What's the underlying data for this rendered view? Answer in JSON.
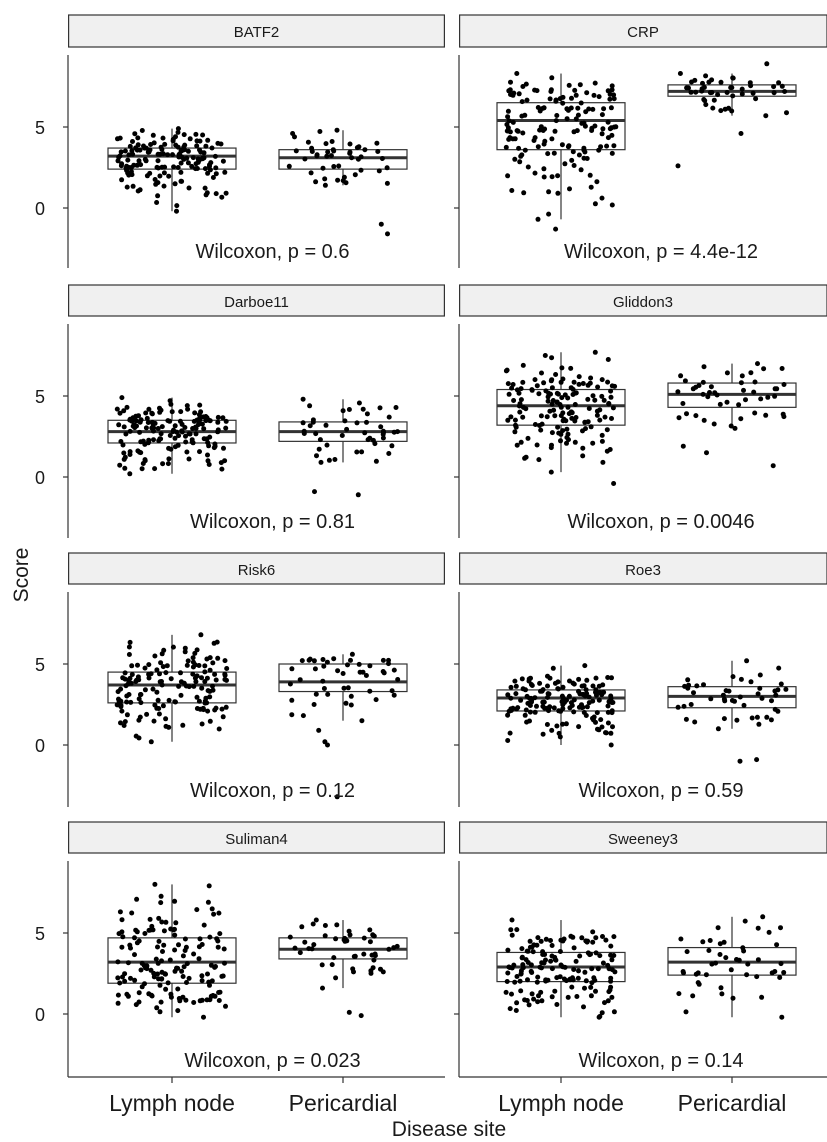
{
  "chart_data": {
    "type": "boxplot",
    "xlabel": "Disease site",
    "ylabel": "Score",
    "categories": [
      "Lymph node",
      "Pericardial"
    ],
    "yticks": [
      0,
      5
    ],
    "ylim": [
      -3.8,
      9.8
    ],
    "panels": [
      {
        "title": "BATF2",
        "annotation": "Wilcoxon, p = 0.6",
        "groups": [
          {
            "name": "Lymph node",
            "n": 150,
            "q1": 2.4,
            "median": 3.2,
            "q3": 3.7,
            "whisker_low": -0.2,
            "whisker_high": 4.9,
            "outliers": []
          },
          {
            "name": "Pericardial",
            "n": 45,
            "q1": 2.4,
            "median": 3.1,
            "q3": 3.6,
            "whisker_low": 1.4,
            "whisker_high": 4.8,
            "outliers": [
              -1.0,
              -1.6
            ]
          }
        ]
      },
      {
        "title": "CRP",
        "annotation": "Wilcoxon, p = 4.4e-12",
        "groups": [
          {
            "name": "Lymph node",
            "n": 150,
            "q1": 3.6,
            "median": 5.4,
            "q3": 6.5,
            "whisker_low": -0.7,
            "whisker_high": 8.3,
            "outliers": [
              -1.3
            ]
          },
          {
            "name": "Pericardial",
            "n": 45,
            "q1": 6.9,
            "median": 7.2,
            "q3": 7.6,
            "whisker_low": 5.7,
            "whisker_high": 8.3,
            "outliers": [
              2.6,
              4.6,
              8.9
            ]
          }
        ]
      },
      {
        "title": "Darboe11",
        "annotation": "Wilcoxon, p = 0.81",
        "groups": [
          {
            "name": "Lymph node",
            "n": 150,
            "q1": 2.1,
            "median": 2.8,
            "q3": 3.5,
            "whisker_low": 0.2,
            "whisker_high": 4.9,
            "outliers": []
          },
          {
            "name": "Pericardial",
            "n": 45,
            "q1": 2.2,
            "median": 2.8,
            "q3": 3.4,
            "whisker_low": 0.9,
            "whisker_high": 4.8,
            "outliers": [
              -0.9,
              -1.1
            ]
          }
        ]
      },
      {
        "title": "Gliddon3",
        "annotation": "Wilcoxon, p = 0.0046",
        "groups": [
          {
            "name": "Lymph node",
            "n": 150,
            "q1": 3.2,
            "median": 4.4,
            "q3": 5.4,
            "whisker_low": 0.3,
            "whisker_high": 7.7,
            "outliers": [
              -0.4
            ]
          },
          {
            "name": "Pericardial",
            "n": 45,
            "q1": 4.3,
            "median": 5.1,
            "q3": 5.8,
            "whisker_low": 3.0,
            "whisker_high": 7.0,
            "outliers": [
              0.7,
              1.5,
              1.9
            ]
          }
        ]
      },
      {
        "title": "Risk6",
        "annotation": "Wilcoxon, p = 0.12",
        "groups": [
          {
            "name": "Lymph node",
            "n": 150,
            "q1": 2.6,
            "median": 3.7,
            "q3": 4.5,
            "whisker_low": 0.2,
            "whisker_high": 6.8,
            "outliers": []
          },
          {
            "name": "Pericardial",
            "n": 45,
            "q1": 3.3,
            "median": 3.9,
            "q3": 5.0,
            "whisker_low": 1.5,
            "whisker_high": 5.6,
            "outliers": [
              0.0,
              0.2,
              0.9,
              -3.2
            ]
          }
        ]
      },
      {
        "title": "Roe3",
        "annotation": "Wilcoxon, p = 0.59",
        "groups": [
          {
            "name": "Lymph node",
            "n": 150,
            "q1": 2.1,
            "median": 2.9,
            "q3": 3.4,
            "whisker_low": 0.0,
            "whisker_high": 4.9,
            "outliers": []
          },
          {
            "name": "Pericardial",
            "n": 45,
            "q1": 2.3,
            "median": 3.0,
            "q3": 3.6,
            "whisker_low": 1.0,
            "whisker_high": 5.2,
            "outliers": [
              -0.9,
              -1.0
            ]
          }
        ]
      },
      {
        "title": "Suliman4",
        "annotation": "Wilcoxon, p = 0.023",
        "groups": [
          {
            "name": "Lymph node",
            "n": 150,
            "q1": 1.9,
            "median": 3.2,
            "q3": 4.7,
            "whisker_low": -0.2,
            "whisker_high": 8.0,
            "outliers": []
          },
          {
            "name": "Pericardial",
            "n": 45,
            "q1": 3.4,
            "median": 4.0,
            "q3": 4.7,
            "whisker_low": 1.6,
            "whisker_high": 5.8,
            "outliers": [
              -0.1,
              0.1
            ]
          }
        ]
      },
      {
        "title": "Sweeney3",
        "annotation": "Wilcoxon, p = 0.14",
        "groups": [
          {
            "name": "Lymph node",
            "n": 150,
            "q1": 2.0,
            "median": 2.9,
            "q3": 3.8,
            "whisker_low": -0.2,
            "whisker_high": 5.8,
            "outliers": []
          },
          {
            "name": "Pericardial",
            "n": 45,
            "q1": 2.4,
            "median": 3.2,
            "q3": 4.1,
            "whisker_low": -0.2,
            "whisker_high": 6.0,
            "outliers": []
          }
        ]
      }
    ]
  }
}
